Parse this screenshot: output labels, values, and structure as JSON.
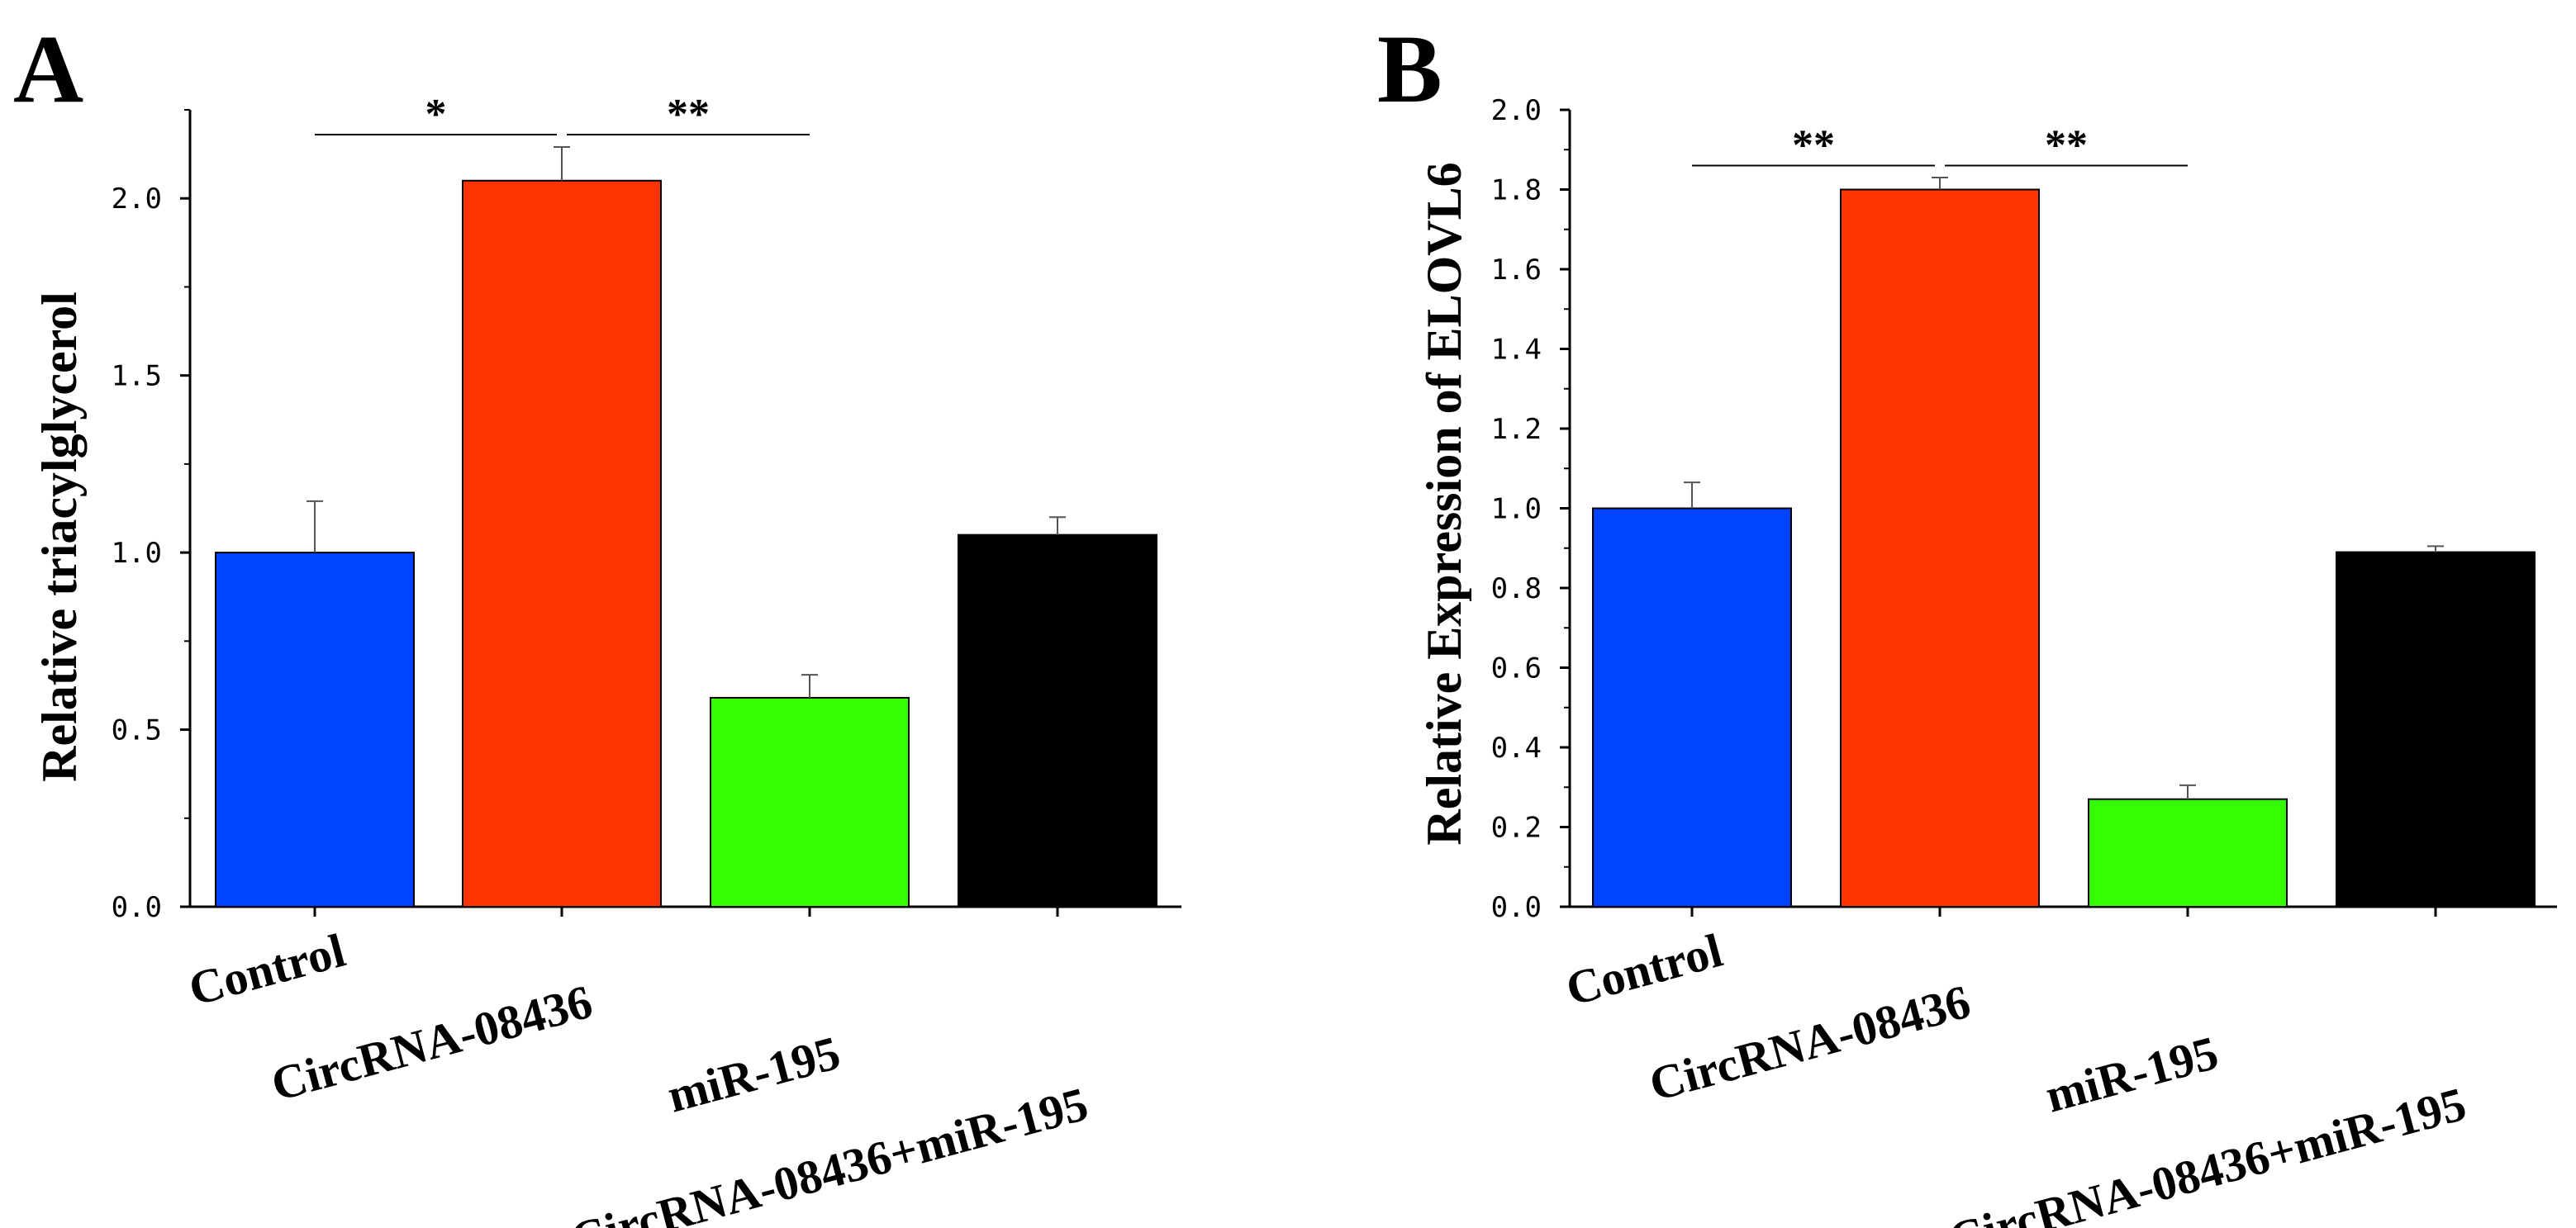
{
  "chart_data": [
    {
      "panel": "A",
      "type": "bar",
      "title": "",
      "xlabel": "",
      "ylabel": "Relative triacylglycerol",
      "categories": [
        "Control",
        "CircRNA-08436",
        "miR-195",
        "CircRNA-08436+miR-195"
      ],
      "values": [
        1.0,
        2.05,
        0.59,
        1.05
      ],
      "errors": [
        0.145,
        0.095,
        0.065,
        0.05
      ],
      "colors": [
        "#0044ff",
        "#ff3300",
        "#33ff00",
        "#000000"
      ],
      "ylim": [
        0,
        2.25
      ],
      "yticks": [
        0.0,
        0.5,
        1.0,
        1.5,
        2.0
      ],
      "ytick_labels": [
        "0.0",
        "0.5",
        "1.0",
        "1.5",
        "2.0"
      ],
      "significance": [
        {
          "from": 0,
          "to": 1,
          "label": "*",
          "y": 2.18
        },
        {
          "from": 1,
          "to": 2,
          "label": "**",
          "y": 2.18
        }
      ]
    },
    {
      "panel": "B",
      "type": "bar",
      "title": "",
      "xlabel": "",
      "ylabel": "Relative Expression of ELOVL6",
      "categories": [
        "Control",
        "CircRNA-08436",
        "miR-195",
        "CircRNA-08436+miR-195"
      ],
      "values": [
        1.0,
        1.8,
        0.27,
        0.89
      ],
      "errors": [
        0.065,
        0.03,
        0.035,
        0.015
      ],
      "colors": [
        "#0044ff",
        "#ff3300",
        "#33ff00",
        "#000000"
      ],
      "ylim": [
        0,
        2.0
      ],
      "yticks": [
        0.0,
        0.2,
        0.4,
        0.6,
        0.8,
        1.0,
        1.2,
        1.4,
        1.6,
        1.8,
        2.0
      ],
      "ytick_labels": [
        "0.0",
        "0.2",
        "0.4",
        "0.6",
        "0.8",
        "1.0",
        "1.2",
        "1.4",
        "1.6",
        "1.8",
        "2.0"
      ],
      "significance": [
        {
          "from": 0,
          "to": 1,
          "label": "**",
          "y": 1.86
        },
        {
          "from": 1,
          "to": 2,
          "label": "**",
          "y": 1.86
        }
      ]
    }
  ]
}
